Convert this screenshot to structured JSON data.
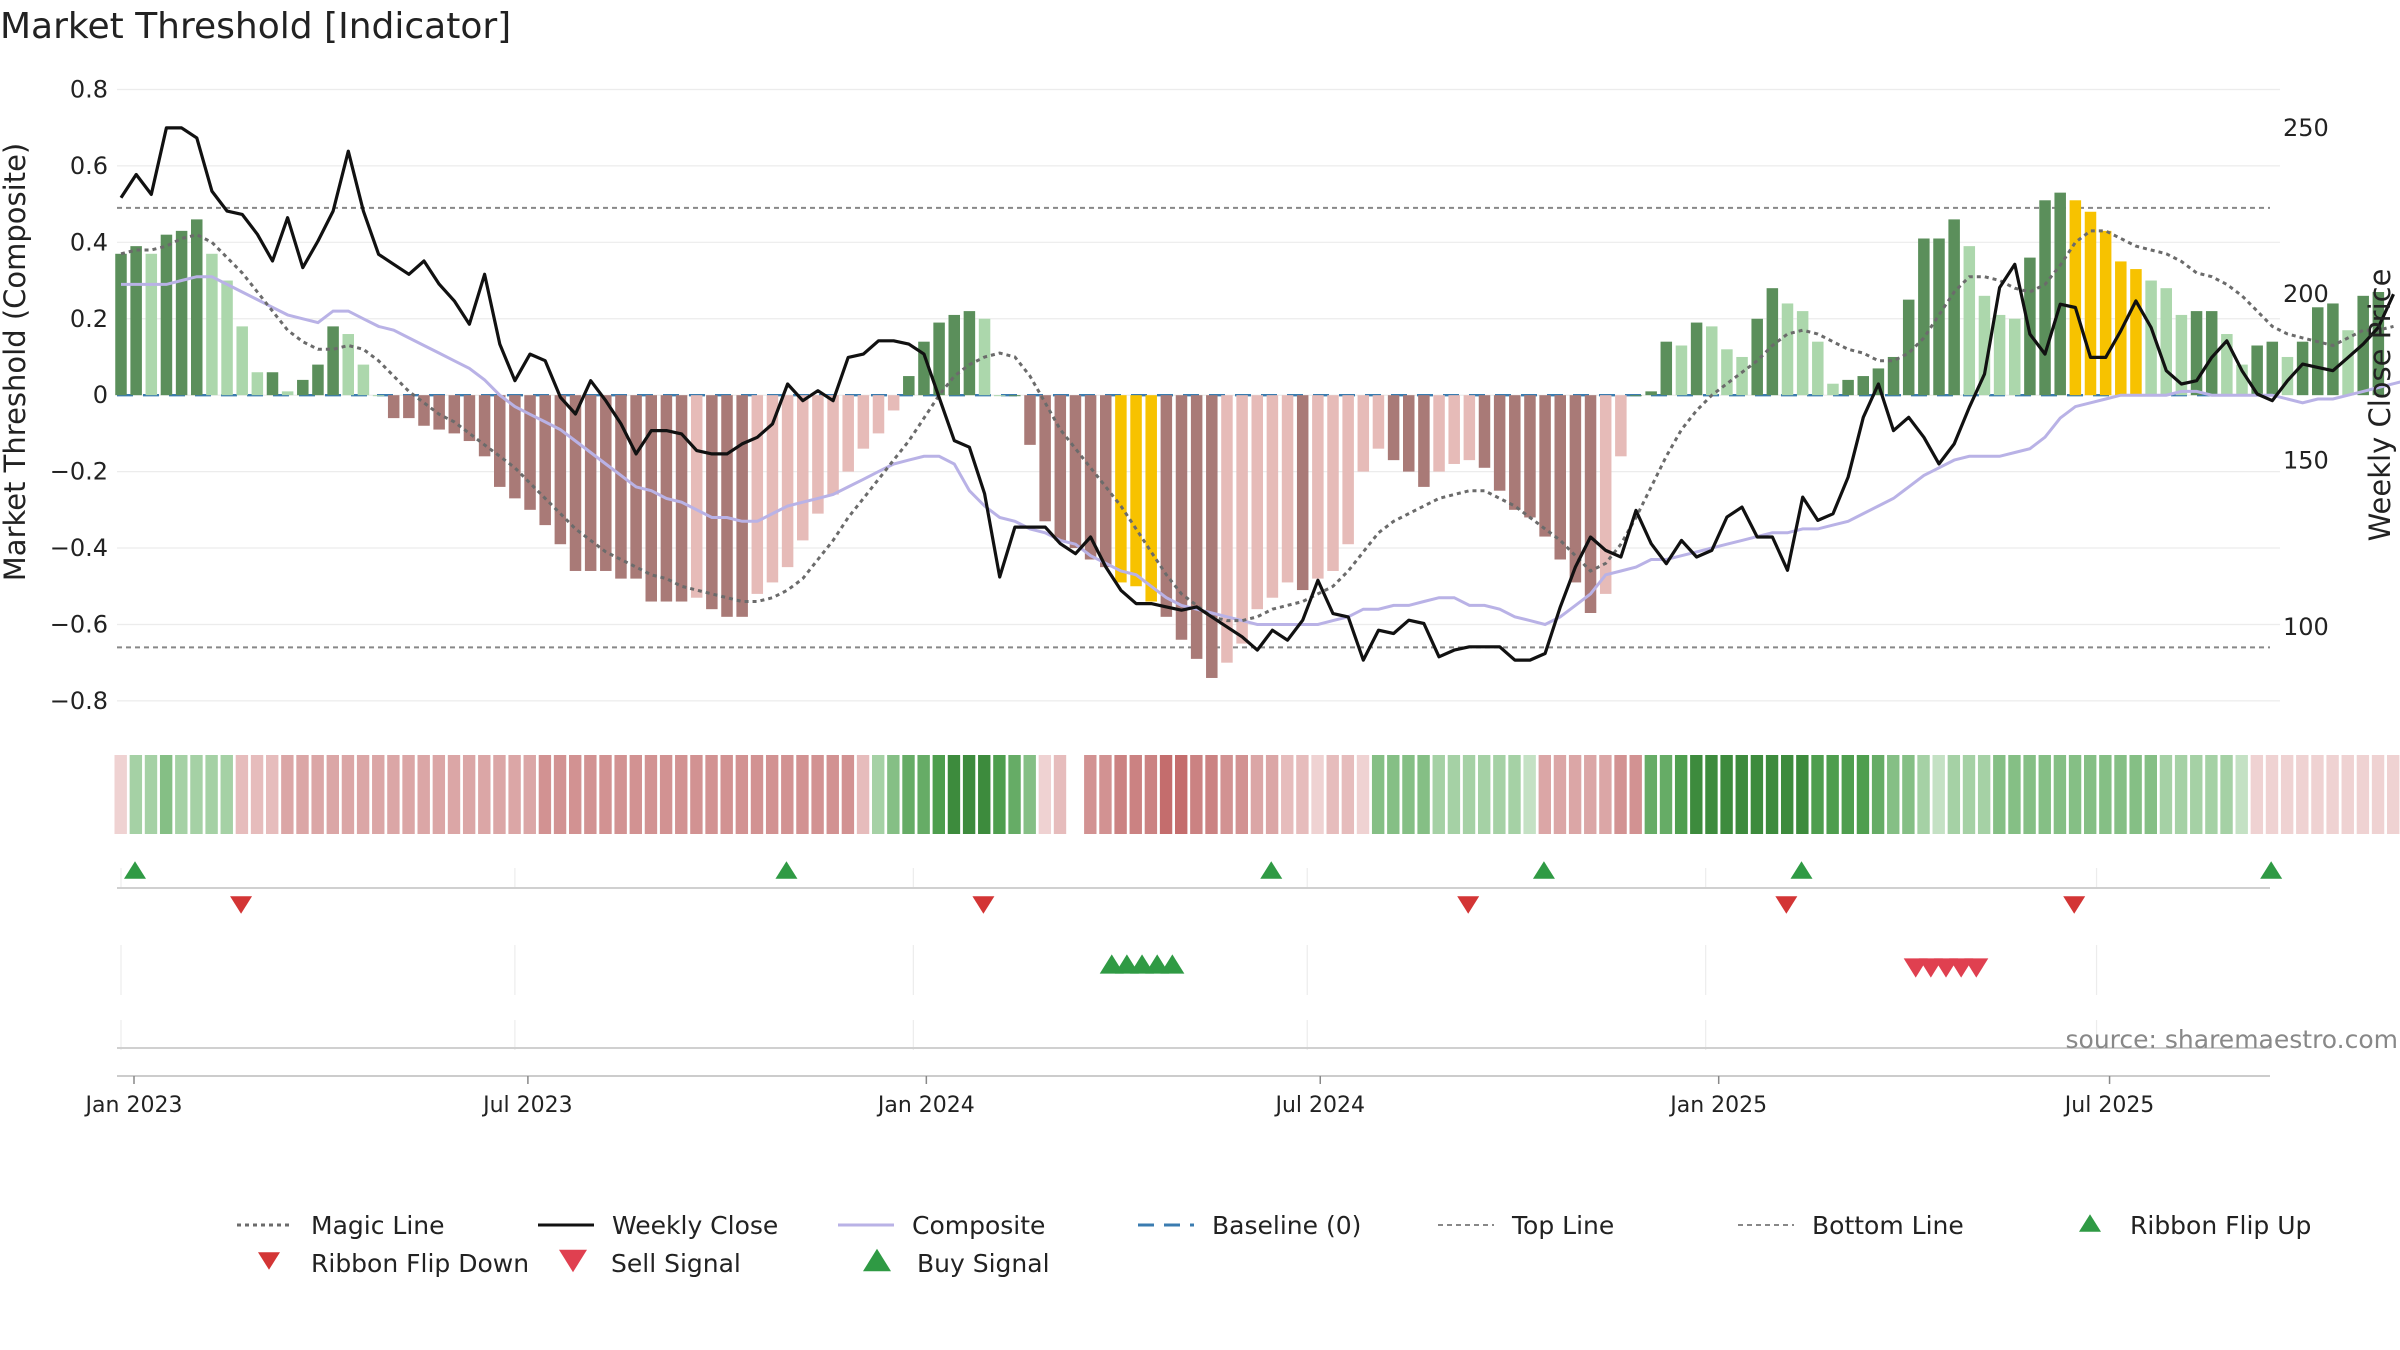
{
  "chart_data": {
    "type": "bar",
    "title": "Market Threshold [Indicator]",
    "ylabel_left": "Market Threshold (Composite)",
    "ylabel_right": "Weekly Close Price",
    "ylim_left": [
      -0.85,
      0.83
    ],
    "ylim_right": [
      72,
      265
    ],
    "yticks_left": [
      0.8,
      0.6,
      0.4,
      0.2,
      0,
      -0.2,
      -0.4,
      -0.6,
      -0.8
    ],
    "yticks_left_labels": [
      "0.8",
      "0.6",
      "0.4",
      "0.2",
      "0",
      "−0.2",
      "−0.4",
      "−0.6",
      "−0.8"
    ],
    "yticks_right": [
      250,
      200,
      150,
      100
    ],
    "yticks_right_labels": [
      "250",
      "200",
      "150",
      "100"
    ],
    "x_ticks": [
      {
        "week": 0,
        "label": "Jan 2023"
      },
      {
        "week": 26,
        "label": "Jul 2023"
      },
      {
        "week": 52.3,
        "label": "Jan 2024"
      },
      {
        "week": 78.3,
        "label": "Jul 2024"
      },
      {
        "week": 104.6,
        "label": "Jan 2025"
      },
      {
        "week": 130.4,
        "label": "Jul 2025"
      }
    ],
    "top_line": 0.49,
    "bottom_line": -0.66,
    "baseline": 0,
    "composite_bars": [
      0.37,
      0.39,
      0.37,
      0.42,
      0.43,
      0.46,
      0.37,
      0.3,
      0.18,
      0.06,
      0.06,
      0.01,
      0.04,
      0.08,
      0.18,
      0.16,
      0.08,
      0.0,
      -0.06,
      -0.06,
      -0.08,
      -0.09,
      -0.1,
      -0.12,
      -0.16,
      -0.24,
      -0.27,
      -0.3,
      -0.34,
      -0.39,
      -0.46,
      -0.46,
      -0.46,
      -0.48,
      -0.48,
      -0.54,
      -0.54,
      -0.54,
      -0.53,
      -0.56,
      -0.58,
      -0.58,
      -0.52,
      -0.49,
      -0.45,
      -0.38,
      -0.31,
      -0.26,
      -0.2,
      -0.14,
      -0.1,
      -0.04,
      0.05,
      0.14,
      0.19,
      0.21,
      0.22,
      0.2,
      0.0,
      0.0,
      -0.13,
      -0.33,
      -0.38,
      -0.4,
      -0.43,
      -0.45,
      -0.49,
      -0.5,
      -0.54,
      -0.58,
      -0.64,
      -0.69,
      -0.74,
      -0.7,
      -0.65,
      -0.56,
      -0.53,
      -0.49,
      -0.51,
      -0.48,
      -0.46,
      -0.39,
      -0.2,
      -0.14,
      -0.17,
      -0.2,
      -0.24,
      -0.2,
      -0.18,
      -0.17,
      -0.19,
      -0.25,
      -0.3,
      -0.32,
      -0.37,
      -0.43,
      -0.49,
      -0.57,
      -0.52,
      -0.16,
      0.0,
      0.01,
      0.14,
      0.13,
      0.19,
      0.18,
      0.12,
      0.1,
      0.2,
      0.28,
      0.24,
      0.22,
      0.14,
      0.03,
      0.04,
      0.05,
      0.07,
      0.1,
      0.25,
      0.41,
      0.41,
      0.46,
      0.39,
      0.26,
      0.21,
      0.2,
      0.36,
      0.51,
      0.53,
      0.51,
      0.48,
      0.43,
      0.35,
      0.33,
      0.3,
      0.28,
      0.21,
      0.22,
      0.22,
      0.16,
      0.08,
      0.13,
      0.14,
      0.1,
      0.14,
      0.23,
      0.24,
      0.17,
      0.26,
      0.27
    ],
    "highlight_bars": {
      "orange_weeks": [
        66,
        67,
        68,
        129,
        130,
        131,
        132,
        133
      ]
    },
    "magic_line": [
      0.37,
      0.38,
      0.38,
      0.39,
      0.41,
      0.42,
      0.4,
      0.36,
      0.32,
      0.27,
      0.22,
      0.17,
      0.14,
      0.12,
      0.12,
      0.13,
      0.12,
      0.09,
      0.05,
      0.01,
      -0.02,
      -0.05,
      -0.07,
      -0.1,
      -0.13,
      -0.16,
      -0.19,
      -0.23,
      -0.27,
      -0.31,
      -0.35,
      -0.38,
      -0.41,
      -0.43,
      -0.45,
      -0.47,
      -0.48,
      -0.5,
      -0.51,
      -0.52,
      -0.53,
      -0.54,
      -0.54,
      -0.53,
      -0.51,
      -0.48,
      -0.43,
      -0.38,
      -0.32,
      -0.27,
      -0.22,
      -0.17,
      -0.12,
      -0.06,
      0.0,
      0.05,
      0.08,
      0.1,
      0.11,
      0.1,
      0.05,
      -0.02,
      -0.09,
      -0.14,
      -0.19,
      -0.24,
      -0.29,
      -0.35,
      -0.41,
      -0.47,
      -0.52,
      -0.55,
      -0.58,
      -0.59,
      -0.59,
      -0.58,
      -0.56,
      -0.55,
      -0.54,
      -0.52,
      -0.5,
      -0.46,
      -0.41,
      -0.36,
      -0.33,
      -0.31,
      -0.29,
      -0.27,
      -0.26,
      -0.25,
      -0.25,
      -0.27,
      -0.29,
      -0.32,
      -0.35,
      -0.38,
      -0.42,
      -0.46,
      -0.44,
      -0.39,
      -0.32,
      -0.24,
      -0.16,
      -0.09,
      -0.04,
      0.0,
      0.03,
      0.06,
      0.09,
      0.13,
      0.16,
      0.17,
      0.16,
      0.14,
      0.12,
      0.11,
      0.09,
      0.09,
      0.11,
      0.15,
      0.21,
      0.27,
      0.31,
      0.31,
      0.3,
      0.28,
      0.27,
      0.29,
      0.34,
      0.4,
      0.43,
      0.43,
      0.41,
      0.39,
      0.38,
      0.37,
      0.35,
      0.32,
      0.31,
      0.29,
      0.26,
      0.22,
      0.18,
      0.16,
      0.15,
      0.14,
      0.13,
      0.15,
      0.17,
      0.17,
      0.18
    ],
    "composite_line": [
      0.29,
      0.29,
      0.29,
      0.29,
      0.3,
      0.31,
      0.31,
      0.29,
      0.27,
      0.25,
      0.23,
      0.21,
      0.2,
      0.19,
      0.22,
      0.22,
      0.2,
      0.18,
      0.17,
      0.15,
      0.13,
      0.11,
      0.09,
      0.07,
      0.04,
      0.0,
      -0.03,
      -0.05,
      -0.07,
      -0.09,
      -0.12,
      -0.15,
      -0.18,
      -0.21,
      -0.24,
      -0.25,
      -0.27,
      -0.28,
      -0.3,
      -0.32,
      -0.32,
      -0.33,
      -0.33,
      -0.31,
      -0.29,
      -0.28,
      -0.27,
      -0.26,
      -0.24,
      -0.22,
      -0.2,
      -0.18,
      -0.17,
      -0.16,
      -0.16,
      -0.18,
      -0.25,
      -0.29,
      -0.32,
      -0.33,
      -0.35,
      -0.36,
      -0.38,
      -0.39,
      -0.42,
      -0.44,
      -0.46,
      -0.47,
      -0.5,
      -0.53,
      -0.55,
      -0.56,
      -0.57,
      -0.58,
      -0.59,
      -0.6,
      -0.6,
      -0.6,
      -0.6,
      -0.6,
      -0.59,
      -0.58,
      -0.56,
      -0.56,
      -0.55,
      -0.55,
      -0.54,
      -0.53,
      -0.53,
      -0.55,
      -0.55,
      -0.56,
      -0.58,
      -0.59,
      -0.6,
      -0.58,
      -0.55,
      -0.52,
      -0.47,
      -0.46,
      -0.45,
      -0.43,
      -0.43,
      -0.42,
      -0.41,
      -0.4,
      -0.39,
      -0.38,
      -0.37,
      -0.36,
      -0.36,
      -0.35,
      -0.35,
      -0.34,
      -0.33,
      -0.31,
      -0.29,
      -0.27,
      -0.24,
      -0.21,
      -0.19,
      -0.17,
      -0.16,
      -0.16,
      -0.16,
      -0.15,
      -0.14,
      -0.11,
      -0.06,
      -0.03,
      -0.02,
      -0.01,
      0.0,
      0.0,
      0.0,
      0.0,
      0.01,
      0.01,
      0.0,
      0.0,
      0.0,
      0.0,
      0.0,
      -0.01,
      -0.02,
      -0.01,
      -0.01,
      0.0,
      0.01,
      0.02,
      0.03,
      0.04,
      0.05
    ],
    "weekly_close": [
      229,
      236,
      230,
      250,
      250,
      247,
      231,
      225,
      224,
      218,
      210,
      223,
      208,
      216,
      225,
      243,
      225,
      212,
      209,
      206,
      210,
      203,
      198,
      191,
      206,
      185,
      174,
      182,
      180,
      169,
      164,
      174,
      168,
      161,
      152,
      159,
      159,
      158,
      153,
      152,
      152,
      155,
      157,
      161,
      173,
      168,
      171,
      168,
      181,
      182,
      186,
      186,
      185,
      182,
      169,
      156,
      154,
      140,
      115,
      130,
      130,
      130,
      125,
      122,
      127,
      118,
      111,
      107,
      107,
      106,
      105,
      106,
      103,
      100,
      97,
      93,
      99,
      96,
      102,
      114,
      104,
      103,
      90,
      99,
      98,
      102,
      101,
      91,
      93,
      94,
      94,
      94,
      90,
      90,
      92,
      106,
      118,
      127,
      123,
      121,
      135,
      125,
      119,
      126,
      121,
      123,
      133,
      136,
      127,
      127,
      117,
      139,
      132,
      134,
      145,
      163,
      173,
      159,
      163,
      157,
      149,
      155,
      166,
      176,
      202,
      209,
      188,
      182,
      197,
      196,
      181,
      181,
      189,
      198,
      190,
      177,
      173,
      174,
      181,
      186,
      177,
      170,
      168,
      174,
      179,
      178,
      177,
      181,
      185,
      190,
      200
    ],
    "ribbon_palette": [
      "#307a30",
      "#3d8b3d",
      "#4e9e4e",
      "#66ac66",
      "#85bf85",
      "#a5d1a5",
      "#c4e1c4",
      "#efd2d2",
      "#e6bcbc",
      "#dba6a6",
      "#d29292",
      "#cb8282",
      "#c46d6d"
    ],
    "ribbon_levels": [
      7,
      5,
      5,
      4,
      5,
      5,
      5,
      5,
      8,
      8,
      8,
      9,
      9,
      9,
      9,
      9,
      9,
      9,
      9,
      9,
      9,
      9,
      9,
      9,
      9,
      9,
      9,
      9,
      10,
      10,
      10,
      10,
      10,
      10,
      10,
      10,
      10,
      10,
      10,
      10,
      10,
      10,
      10,
      10,
      10,
      10,
      10,
      10,
      10,
      8,
      5,
      4,
      3,
      3,
      2,
      1,
      1,
      1,
      2,
      3,
      4,
      7,
      8,
      -1,
      10,
      10,
      11,
      11,
      11,
      12,
      12,
      11,
      11,
      10,
      10,
      9,
      9,
      8,
      8,
      7,
      8,
      8,
      7,
      4,
      4,
      4,
      4,
      5,
      5,
      5,
      5,
      5,
      5,
      6,
      9,
      9,
      9,
      9,
      9,
      10,
      10,
      3,
      3,
      2,
      1,
      1,
      1,
      1,
      1,
      1,
      1,
      1,
      2,
      2,
      2,
      2,
      3,
      4,
      4,
      5,
      6,
      5,
      5,
      5,
      4,
      4,
      4,
      4,
      4,
      4,
      4,
      4,
      4,
      4,
      4,
      5,
      5,
      5,
      5,
      5,
      6,
      7,
      7,
      7,
      7,
      7,
      7,
      7,
      7,
      7,
      7,
      7,
      7,
      7,
      6
    ],
    "ribbon_flip_up_weeks": [
      0,
      43,
      75,
      93,
      110,
      141
    ],
    "ribbon_flip_down_weeks": [
      7,
      56,
      88,
      109,
      128
    ],
    "buy_signal_weeks": [
      65,
      66,
      67,
      68,
      69
    ],
    "sell_signal_weeks": [
      118,
      119,
      120,
      121,
      122
    ],
    "legend": [
      "Magic Line",
      "Weekly Close",
      "Composite",
      "Baseline (0)",
      "Top Line",
      "Bottom Line",
      "Ribbon Flip Up",
      "Ribbon Flip Down",
      "Sell Signal",
      "Buy Signal"
    ],
    "source": "source: sharemaestro.com",
    "colors": {
      "pos_strong": "#5b8f5b",
      "pos_weak": "#acd7ac",
      "neg_strong": "#a97a77",
      "neg_weak": "#e6bbb8",
      "highlight": "#f7c200",
      "weekly_close": "#111111",
      "composite_line": "#b9b2e6",
      "magic_line": "#6b6b6b",
      "baseline": "#3b7cb0",
      "thresholds": "#888888",
      "up_marker": "#2f9a44",
      "down_marker": "#d33535",
      "sell_marker": "#e04050",
      "buy_marker": "#2f9a44"
    }
  }
}
